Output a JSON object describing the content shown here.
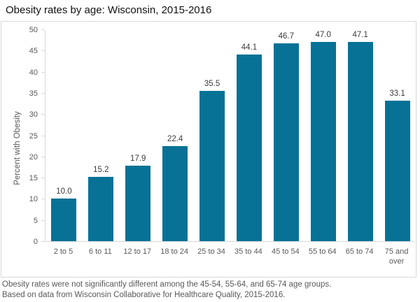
{
  "chart_data": {
    "type": "bar",
    "title": "Obesity rates by age: Wisconsin, 2015-2016",
    "xlabel": "",
    "ylabel": "Percent with Obesity",
    "categories": [
      "2 to 5",
      "6 to 11",
      "12 to 17",
      "18 to 24",
      "25 to 34",
      "35 to 44",
      "45 to 54",
      "55 to 64",
      "65 to 74",
      "75 and over"
    ],
    "values": [
      10.0,
      15.2,
      17.9,
      22.4,
      35.5,
      44.1,
      46.7,
      47.0,
      47.1,
      33.1
    ],
    "value_labels": [
      "10.0",
      "15.2",
      "17.9",
      "22.4",
      "35.5",
      "44.1",
      "46.7",
      "47.0",
      "47.1",
      "33.1"
    ],
    "ylim": [
      0,
      50
    ],
    "yticks": [
      0,
      5,
      10,
      15,
      20,
      25,
      30,
      35,
      40,
      45,
      50
    ],
    "grid": false,
    "legend": null,
    "bar_color": "#077296"
  },
  "notes": [
    "Obesity rates were not significantly different among the 45-54, 55-64, and 65-74 age groups.",
    "Based on data from Wisconsin Collaborative for Healthcare Quality, 2015-2016."
  ],
  "colors": {
    "axis_line": "#d9d9d9",
    "border": "#d9d9d9",
    "tick_text": "#595959",
    "note_text": "#595959",
    "value_text": "#3b3b3b",
    "title_text": "#111111",
    "bar": "#077296"
  }
}
